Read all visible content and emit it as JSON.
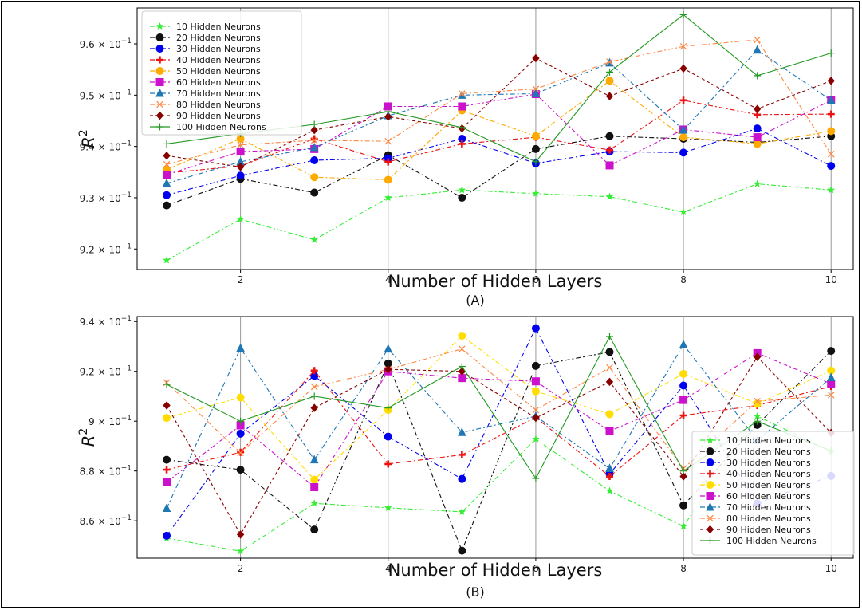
{
  "chart_data": [
    {
      "type": "line",
      "panel_label": "(A)",
      "xlabel": "Number of Hidden Layers",
      "ylabel": "R",
      "ylabel_sup": "2",
      "x": [
        1,
        2,
        3,
        4,
        5,
        6,
        7,
        8,
        9,
        10
      ],
      "xticks": [
        2,
        4,
        6,
        8,
        10
      ],
      "xlim": [
        0.6,
        10.3
      ],
      "ylim": [
        0.916,
        0.967
      ],
      "yticks": [
        {
          "value": 0.92,
          "mantissa": "9.2",
          "base": "10",
          "exp": "−1"
        },
        {
          "value": 0.93,
          "mantissa": "9.3",
          "base": "10",
          "exp": "−1"
        },
        {
          "value": 0.94,
          "mantissa": "9.4",
          "base": "10",
          "exp": "−1"
        },
        {
          "value": 0.95,
          "mantissa": "9.5",
          "base": "10",
          "exp": "−1"
        },
        {
          "value": 0.96,
          "mantissa": "9.6",
          "base": "10",
          "exp": "−1"
        }
      ],
      "grid": "vertical",
      "legend": "top-left",
      "series": [
        {
          "name": "10 Hidden Neurons",
          "color": "#33ee33",
          "marker": "star",
          "dash": "6,3,2,3",
          "values": [
            0.9178,
            0.9258,
            0.9218,
            0.93,
            0.9315,
            0.9308,
            0.9302,
            0.9272,
            0.9327,
            0.9315
          ]
        },
        {
          "name": "20 Hidden Neurons",
          "color": "#111111",
          "marker": "circle",
          "dash": "6,3,2,3",
          "values": [
            0.9285,
            0.9337,
            0.931,
            0.9383,
            0.93,
            0.9395,
            0.942,
            0.9415,
            0.9408,
            0.942
          ]
        },
        {
          "name": "30 Hidden Neurons",
          "color": "#0000ee",
          "marker": "circle",
          "dash": "6,3,2,3",
          "values": [
            0.9305,
            0.9343,
            0.9373,
            0.9377,
            0.9415,
            0.9367,
            0.939,
            0.9388,
            0.9435,
            0.9362
          ]
        },
        {
          "name": "40 Hidden Neurons",
          "color": "#ee1111",
          "marker": "plus",
          "dash": "6,3,2,3",
          "values": [
            0.9348,
            0.9362,
            0.9415,
            0.937,
            0.9405,
            0.9418,
            0.9393,
            0.949,
            0.9462,
            0.9463
          ]
        },
        {
          "name": "50 Hidden Neurons",
          "color": "#ffaa00",
          "marker": "circle",
          "dash": "6,3,2,3",
          "values": [
            0.9355,
            0.9415,
            0.934,
            0.9335,
            0.947,
            0.942,
            0.9528,
            0.9418,
            0.9405,
            0.943
          ]
        },
        {
          "name": "60 Hidden Neurons",
          "color": "#cc11cc",
          "marker": "square",
          "dash": "6,3,2,3",
          "values": [
            0.9345,
            0.939,
            0.9395,
            0.9478,
            0.9478,
            0.9502,
            0.9363,
            0.9433,
            0.9418,
            0.949
          ]
        },
        {
          "name": "70 Hidden Neurons",
          "color": "#1f77b4",
          "marker": "triangle",
          "dash": "6,3,2,3",
          "values": [
            0.9328,
            0.937,
            0.9398,
            0.946,
            0.95,
            0.9503,
            0.9563,
            0.9432,
            0.9588,
            0.949
          ]
        },
        {
          "name": "80 Hidden Neurons",
          "color": "#ff8844",
          "marker": "x",
          "dash": "6,3,2,3",
          "values": [
            0.9365,
            0.9403,
            0.9412,
            0.941,
            0.9503,
            0.9512,
            0.9565,
            0.9595,
            0.9608,
            0.9385
          ]
        },
        {
          "name": "90 Hidden Neurons",
          "color": "#880000",
          "marker": "diamond",
          "dash": "4,3",
          "values": [
            0.9382,
            0.936,
            0.9432,
            0.9458,
            0.9435,
            0.9572,
            0.9498,
            0.9552,
            0.9473,
            0.9528
          ]
        },
        {
          "name": "100 Hidden Neurons",
          "color": "#229922",
          "marker": "plusthin",
          "dash": "",
          "values": [
            0.9405,
            0.9425,
            0.9443,
            0.9468,
            0.9437,
            0.937,
            0.9545,
            0.9657,
            0.9538,
            0.9582
          ]
        }
      ]
    },
    {
      "type": "line",
      "panel_label": "(B)",
      "xlabel": "Number of Hidden Layers",
      "ylabel": "R",
      "ylabel_sup": "2",
      "x": [
        1,
        2,
        3,
        4,
        5,
        6,
        7,
        8,
        9,
        10
      ],
      "xticks": [
        2,
        4,
        6,
        8,
        10
      ],
      "xlim": [
        0.6,
        10.3
      ],
      "ylim": [
        0.845,
        0.942
      ],
      "yticks": [
        {
          "value": 0.86,
          "mantissa": "8.6",
          "base": "10",
          "exp": "−1"
        },
        {
          "value": 0.88,
          "mantissa": "8.8",
          "base": "10",
          "exp": "−1"
        },
        {
          "value": 0.9,
          "mantissa": "9",
          "base": "10",
          "exp": "−1"
        },
        {
          "value": 0.92,
          "mantissa": "9.2",
          "base": "10",
          "exp": "−1"
        },
        {
          "value": 0.94,
          "mantissa": "9.4",
          "base": "10",
          "exp": "−1"
        }
      ],
      "grid": "vertical",
      "legend": "bottom-right",
      "series": [
        {
          "name": "10 Hidden Neurons",
          "color": "#33ee33",
          "marker": "star",
          "dash": "6,3,2,3",
          "values": [
            0.853,
            0.8478,
            0.867,
            0.8652,
            0.8636,
            0.8928,
            0.872,
            0.8578,
            0.902,
            0.888
          ]
        },
        {
          "name": "20 Hidden Neurons",
          "color": "#111111",
          "marker": "circle",
          "dash": "6,3,2,3",
          "values": [
            0.8845,
            0.8805,
            0.8565,
            0.9232,
            0.848,
            0.9222,
            0.9278,
            0.8662,
            0.8985,
            0.9282
          ]
        },
        {
          "name": "30 Hidden Neurons",
          "color": "#0000ee",
          "marker": "circle",
          "dash": "6,3,2,3",
          "values": [
            0.854,
            0.895,
            0.9182,
            0.8938,
            0.8768,
            0.9373,
            0.8788,
            0.9143,
            0.867,
            0.878
          ]
        },
        {
          "name": "40 Hidden Neurons",
          "color": "#ee1111",
          "marker": "plus",
          "dash": "6,3,2,3",
          "values": [
            0.8805,
            0.8875,
            0.9203,
            0.8828,
            0.8865,
            0.9015,
            0.8778,
            0.9023,
            0.9063,
            0.914
          ]
        },
        {
          "name": "50 Hidden Neurons",
          "color": "#ffdd00",
          "marker": "circle",
          "dash": "6,3,2,3",
          "values": [
            0.9013,
            0.9095,
            0.8765,
            0.9045,
            0.9343,
            0.912,
            0.9028,
            0.919,
            0.907,
            0.9203
          ]
        },
        {
          "name": "60 Hidden Neurons",
          "color": "#cc11cc",
          "marker": "square",
          "dash": "6,3,2,3",
          "values": [
            0.8755,
            0.8983,
            0.8735,
            0.92,
            0.9173,
            0.916,
            0.896,
            0.9085,
            0.9273,
            0.915
          ]
        },
        {
          "name": "70 Hidden Neurons",
          "color": "#1f77b4",
          "marker": "triangle",
          "dash": "6,3,2,3",
          "values": [
            0.865,
            0.9293,
            0.8845,
            0.929,
            0.8955,
            0.902,
            0.881,
            0.9307,
            0.8923,
            0.9175
          ]
        },
        {
          "name": "80 Hidden Neurons",
          "color": "#ff8844",
          "marker": "x",
          "dash": "6,3,2,3",
          "values": [
            0.9155,
            0.8873,
            0.9138,
            0.9208,
            0.929,
            0.9045,
            0.9215,
            0.881,
            0.908,
            0.9105
          ]
        },
        {
          "name": "90 Hidden Neurons",
          "color": "#880000",
          "marker": "diamond",
          "dash": "4,3",
          "values": [
            0.9063,
            0.8545,
            0.9053,
            0.9208,
            0.92,
            0.9013,
            0.9158,
            0.8778,
            0.9258,
            0.8953
          ]
        },
        {
          "name": "100 Hidden Neurons",
          "color": "#229922",
          "marker": "plusthin",
          "dash": "",
          "values": [
            0.9148,
            0.9,
            0.91,
            0.9053,
            0.922,
            0.877,
            0.934,
            0.88,
            0.9,
            0.888
          ]
        }
      ]
    }
  ]
}
